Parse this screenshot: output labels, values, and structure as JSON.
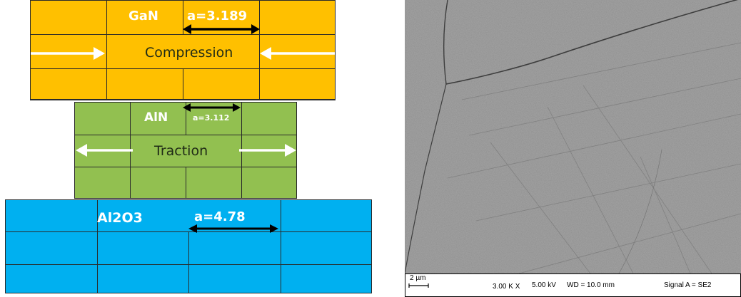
{
  "diagram": {
    "gan": {
      "label": "GaN",
      "lattice": "a=3.189",
      "stress": "Compression"
    },
    "aln": {
      "label": "AlN",
      "lattice": "a=3.112",
      "stress": "Traction"
    },
    "sapphire": {
      "label": "Al2O3",
      "lattice": "a=4.78"
    },
    "colors": {
      "gan": "#ffc000",
      "aln": "#92c050",
      "sapphire": "#00b0f0",
      "arrow_white": "#ffffff",
      "arrow_black": "#000000"
    }
  },
  "micrograph": {
    "scale_bar": "2 µm",
    "magnification": "3.00 K X",
    "voltage": "5.00 kV",
    "working_distance": "WD = 10.0 mm",
    "signal": "Signal A = SE2"
  }
}
